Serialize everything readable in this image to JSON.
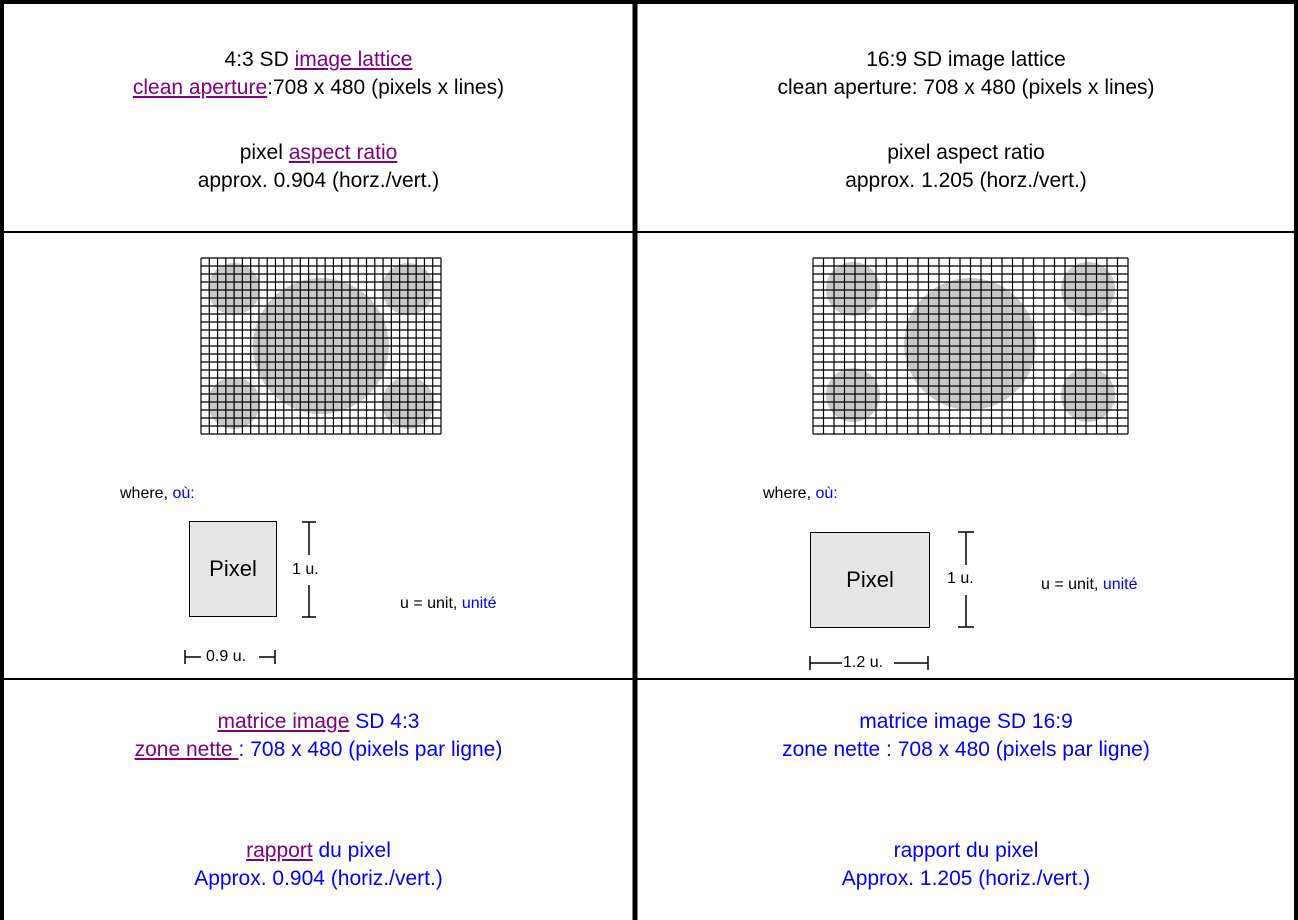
{
  "left": {
    "line1_a": "4:3 SD ",
    "line1_link": "image lattice",
    "line2_link": "clean aperture",
    "line2_b": ":708 x 480 (pixels x lines)",
    "line3_a": "pixel ",
    "line3_link": "aspect ratio",
    "line4": "approx. 0.904 (horz./vert.)",
    "where": "where, ",
    "ou": "où:",
    "pixel_label": "Pixel",
    "height_label": "1 u.",
    "width_label": "0.9 u.",
    "unit_a": "u = unit, ",
    "unit_fr": "unité",
    "fr1_link": "matrice image",
    "fr1_b": " SD 4:3",
    "fr2_link": "zone nette ",
    "fr2_b": ": 708 x 480 (pixels par ligne)",
    "fr3_link": "rapport",
    "fr3_b": " du pixel",
    "fr4": "Approx. 0.904 (horiz./vert.)"
  },
  "right": {
    "line1": "16:9 SD image lattice",
    "line2": "clean aperture: 708 x 480 (pixels x lines)",
    "line3": "pixel aspect ratio",
    "line4": "approx. 1.205 (horz./vert.)",
    "where": "where, ",
    "ou": "où:",
    "pixel_label": "Pixel",
    "height_label": "1 u.",
    "width_label": "1.2 u.",
    "unit_a": "u = unit, ",
    "unit_fr": "unité",
    "fr1": "matrice image SD 16:9",
    "fr2": "zone nette : 708 x 480 (pixels par ligne)",
    "fr3": "rapport du pixel",
    "fr4": "Approx. 1.205 (horiz./vert.)"
  },
  "colors": {
    "link": "#800080",
    "french": "#0000ff",
    "grid_fill": "#c8c8c8",
    "pixel_fill": "#e6e6e6"
  }
}
